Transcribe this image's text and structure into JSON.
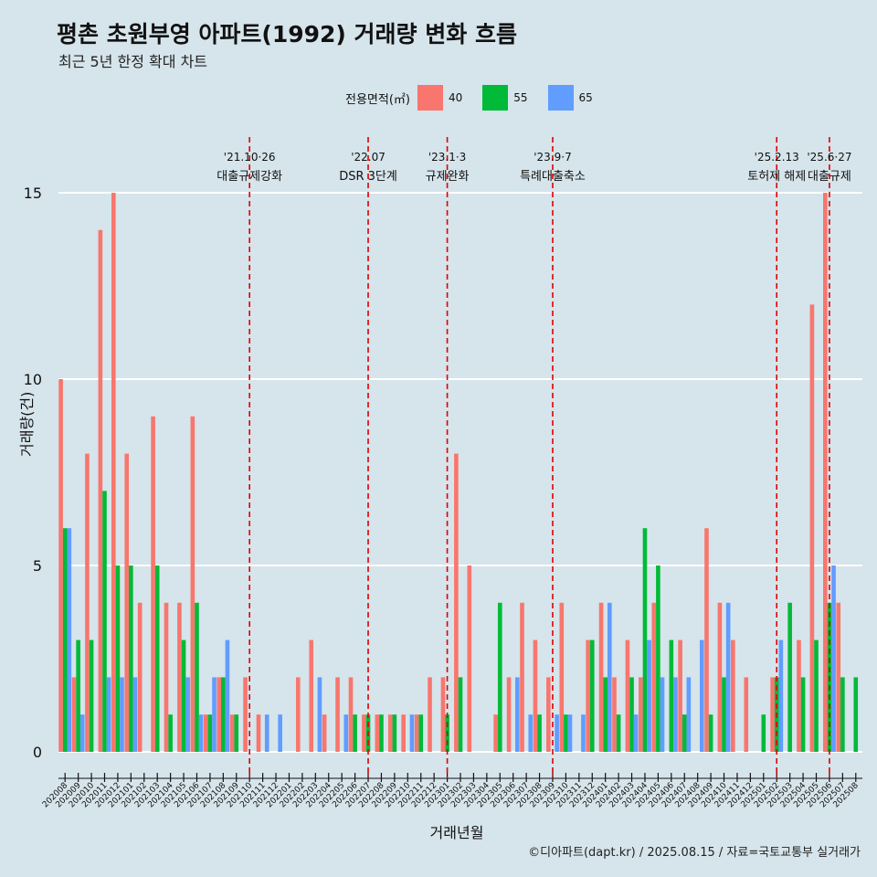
{
  "header": {
    "title": "평촌 초원부영 아파트(1992) 거래량 변화 흐름",
    "subtitle": "최근 5년 한정 확대 차트"
  },
  "legend": {
    "title": "전용면적(㎡)",
    "items": [
      {
        "label": "40",
        "color": "#f8766d"
      },
      {
        "label": "55",
        "color": "#00ba38"
      },
      {
        "label": "65",
        "color": "#619cff"
      }
    ]
  },
  "footer": {
    "credit": "©디아파트(dapt.kr) / 2025.08.15 / 자료=국토교통부 실거래가"
  },
  "chart_data": {
    "type": "bar",
    "xlabel": "거래년월",
    "ylabel": "거래량(건)",
    "ylim": [
      0,
      15
    ],
    "yticks": [
      0,
      5,
      10,
      15
    ],
    "grid": true,
    "categories": [
      "202008",
      "202009",
      "202010",
      "202011",
      "202012",
      "202101",
      "202102",
      "202103",
      "202104",
      "202105",
      "202106",
      "202107",
      "202108",
      "202109",
      "202110",
      "202111",
      "202112",
      "202201",
      "202202",
      "202203",
      "202204",
      "202205",
      "202206",
      "202207",
      "202208",
      "202209",
      "202210",
      "202211",
      "202212",
      "202301",
      "202302",
      "202303",
      "202304",
      "202305",
      "202306",
      "202307",
      "202308",
      "202309",
      "202310",
      "202311",
      "202312",
      "202401",
      "202402",
      "202403",
      "202404",
      "202405",
      "202406",
      "202407",
      "202408",
      "202409",
      "202410",
      "202411",
      "202412",
      "202501",
      "202502",
      "202503",
      "202504",
      "202505",
      "202506",
      "202507",
      "202508"
    ],
    "series": [
      {
        "name": "40",
        "color": "#f8766d",
        "values": [
          10,
          2,
          8,
          14,
          15,
          8,
          4,
          9,
          4,
          4,
          9,
          1,
          2,
          1,
          2,
          1,
          0,
          0,
          2,
          3,
          1,
          2,
          2,
          1,
          1,
          1,
          1,
          1,
          2,
          2,
          8,
          5,
          0,
          1,
          2,
          4,
          3,
          2,
          4,
          0,
          3,
          4,
          2,
          3,
          2,
          4,
          0,
          3,
          0,
          6,
          4,
          3,
          2,
          0,
          2,
          0,
          3,
          12,
          15,
          4,
          0
        ]
      },
      {
        "name": "55",
        "color": "#00ba38",
        "values": [
          6,
          3,
          3,
          7,
          5,
          5,
          0,
          5,
          1,
          3,
          4,
          1,
          2,
          1,
          0,
          0,
          0,
          0,
          0,
          0,
          0,
          0,
          1,
          1,
          1,
          1,
          0,
          1,
          0,
          1,
          2,
          0,
          0,
          4,
          0,
          0,
          1,
          0,
          1,
          0,
          3,
          2,
          1,
          2,
          6,
          5,
          3,
          1,
          0,
          1,
          2,
          0,
          0,
          1,
          2,
          4,
          2,
          3,
          4,
          2,
          2
        ]
      },
      {
        "name": "65",
        "color": "#619cff",
        "values": [
          6,
          1,
          0,
          2,
          2,
          2,
          0,
          0,
          0,
          2,
          1,
          2,
          3,
          0,
          0,
          1,
          1,
          0,
          0,
          2,
          0,
          1,
          0,
          0,
          0,
          0,
          1,
          0,
          0,
          0,
          0,
          0,
          0,
          0,
          2,
          1,
          0,
          1,
          1,
          1,
          0,
          4,
          0,
          1,
          3,
          2,
          2,
          2,
          3,
          0,
          4,
          0,
          0,
          0,
          3,
          0,
          0,
          0,
          5,
          0,
          0
        ]
      }
    ],
    "annotations": [
      {
        "date": "'21.10·26",
        "label": "대출규제강화",
        "after": "202110"
      },
      {
        "date": "'22.07",
        "label": "DSR 3단계",
        "after": "202207"
      },
      {
        "date": "'23.1·3",
        "label": "규제완화",
        "after": "202301"
      },
      {
        "date": "'23.9·7",
        "label": "특례대출축소",
        "after": "202309"
      },
      {
        "date": "'25.2.13",
        "label": "토허제 해제",
        "after": "202502"
      },
      {
        "date": "'25.6·27",
        "label": "대출규제",
        "after": "202506"
      }
    ],
    "annotation_color": "#e00000"
  }
}
